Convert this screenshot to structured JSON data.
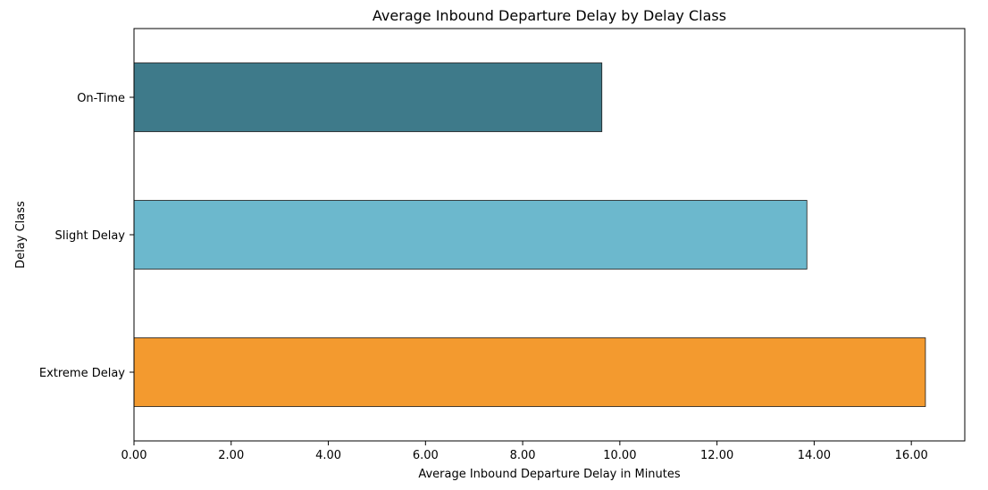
{
  "chart_data": {
    "type": "bar",
    "orientation": "horizontal",
    "title": "Average Inbound Departure Delay by Delay Class",
    "xlabel": "Average Inbound Departure Delay in Minutes",
    "ylabel": "Delay Class",
    "categories": [
      "On-Time",
      "Slight Delay",
      "Extreme Delay"
    ],
    "values": [
      9.63,
      13.85,
      16.29
    ],
    "colors": [
      "#3e7a8a",
      "#6cb8cd",
      "#f39a2f"
    ],
    "xlim": [
      0,
      17.1
    ],
    "xticks": [
      0,
      2,
      4,
      6,
      8,
      10,
      12,
      14,
      16
    ],
    "xtick_labels": [
      "0.00",
      "2.00",
      "4.00",
      "6.00",
      "8.00",
      "10.00",
      "12.00",
      "14.00",
      "16.00"
    ],
    "grid": false,
    "legend": "none"
  }
}
